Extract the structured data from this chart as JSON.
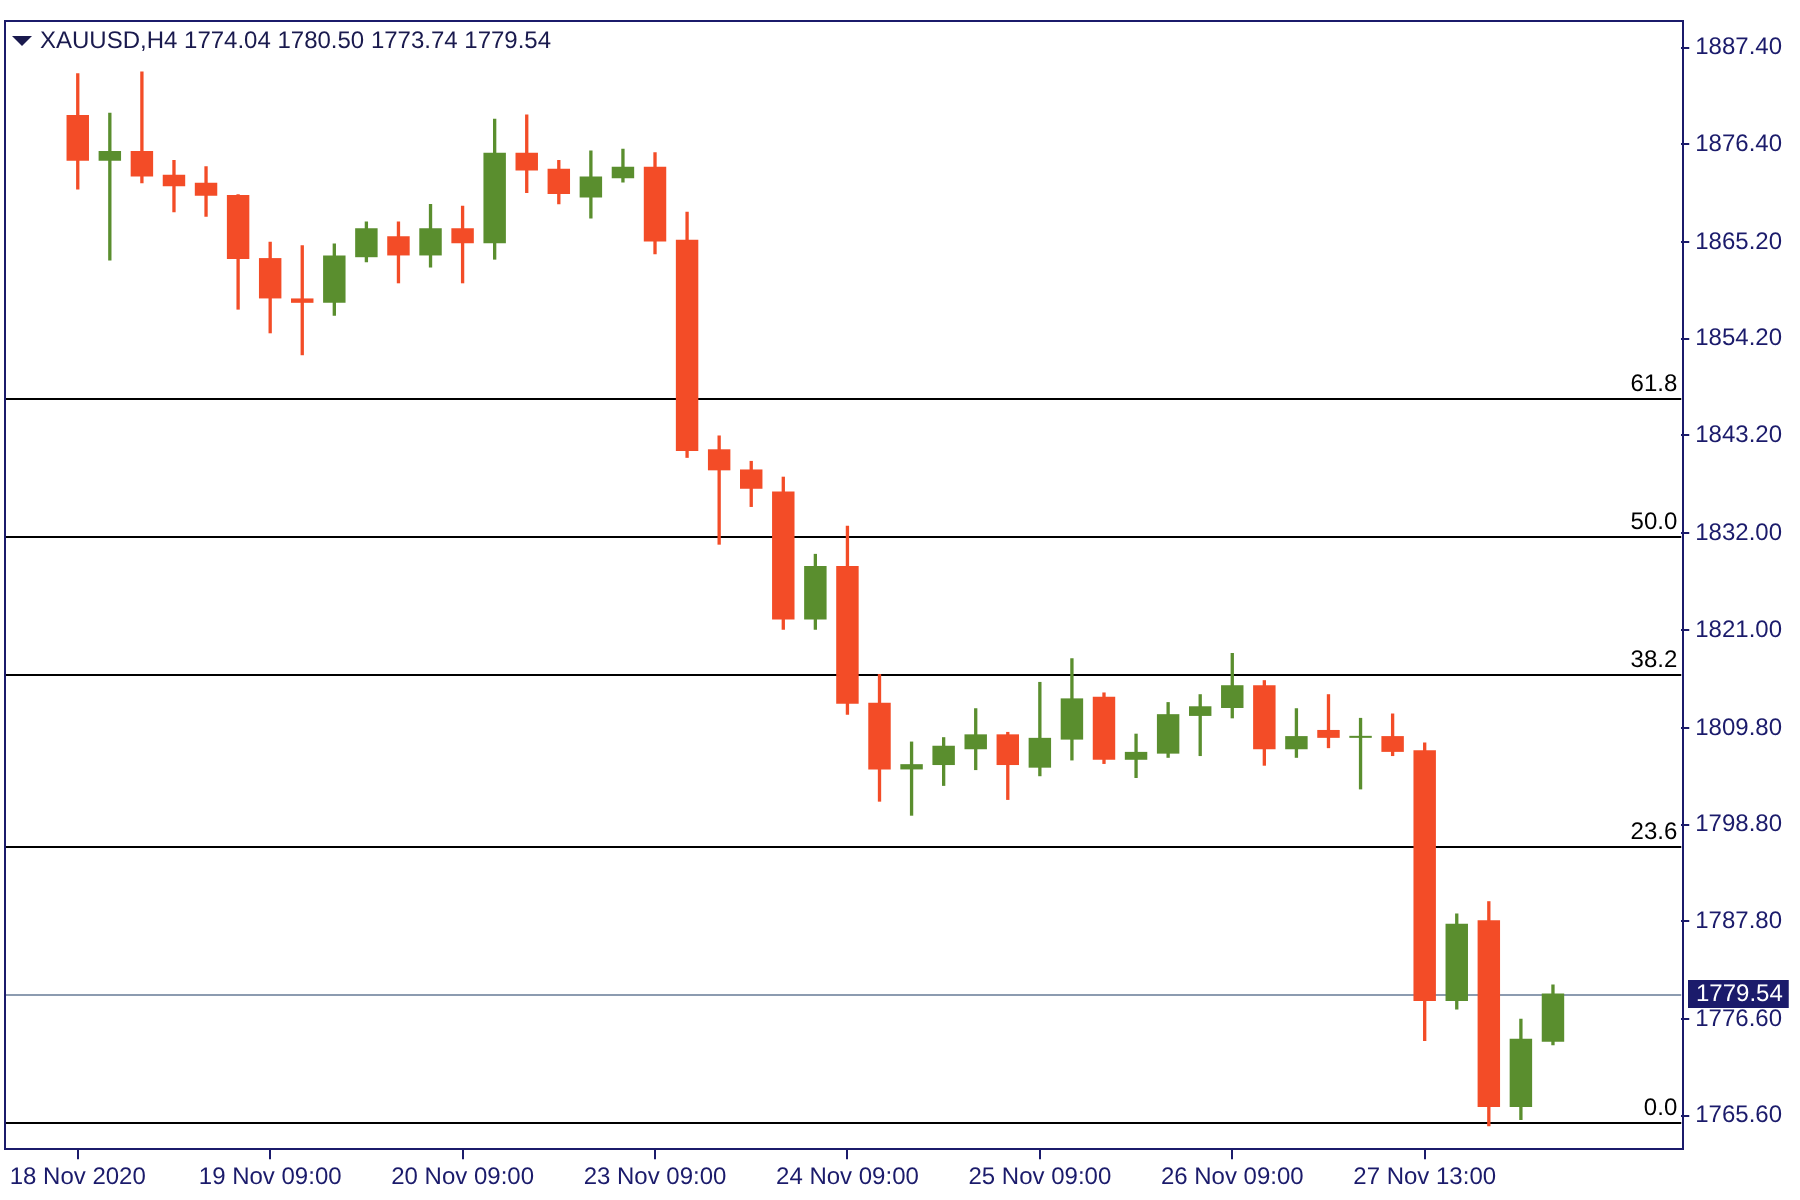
{
  "chart_data": {
    "type": "candlestick",
    "title": "XAUUSD,H4 1774.04 1780.50 1773.74 1779.54",
    "categories": [
      "18 Nov 2020",
      null,
      null,
      null,
      null,
      null,
      "19 Nov 09:00",
      null,
      null,
      null,
      null,
      null,
      "20 Nov 09:00",
      null,
      null,
      null,
      null,
      null,
      "23 Nov 09:00",
      null,
      null,
      null,
      null,
      null,
      "24 Nov 09:00",
      null,
      null,
      null,
      null,
      null,
      "25 Nov 09:00",
      null,
      null,
      null,
      null,
      null,
      "26 Nov 09:00",
      null,
      null,
      null,
      null,
      null,
      "27 Nov 13:00",
      null,
      null,
      null,
      null
    ],
    "ohlc": [
      [
        1879.7,
        1884.4,
        1871.3,
        1874.5
      ],
      [
        1874.5,
        1879.9,
        1863.2,
        1875.6
      ],
      [
        1875.6,
        1884.6,
        1872.0,
        1872.7
      ],
      [
        1872.9,
        1874.5,
        1868.7,
        1871.6
      ],
      [
        1872.0,
        1873.8,
        1868.2,
        1870.5
      ],
      [
        1870.6,
        1870.6,
        1857.6,
        1863.3
      ],
      [
        1863.4,
        1865.2,
        1854.9,
        1858.8
      ],
      [
        1858.8,
        1864.8,
        1852.4,
        1858.3
      ],
      [
        1858.3,
        1865.0,
        1856.9,
        1863.7
      ],
      [
        1863.5,
        1867.5,
        1863.0,
        1866.8
      ],
      [
        1865.9,
        1867.5,
        1860.6,
        1863.7
      ],
      [
        1863.7,
        1869.5,
        1862.4,
        1866.8
      ],
      [
        1866.8,
        1869.3,
        1860.6,
        1865.1
      ],
      [
        1865.1,
        1879.2,
        1863.3,
        1875.4
      ],
      [
        1875.4,
        1879.7,
        1870.9,
        1873.4
      ],
      [
        1873.6,
        1874.5,
        1869.6,
        1870.7
      ],
      [
        1870.3,
        1875.6,
        1868.0,
        1872.7
      ],
      [
        1872.5,
        1875.8,
        1872.1,
        1873.8
      ],
      [
        1873.8,
        1875.4,
        1863.9,
        1865.3
      ],
      [
        1865.5,
        1868.6,
        1840.7,
        1841.4
      ],
      [
        1841.6,
        1843.1,
        1830.8,
        1839.2
      ],
      [
        1839.3,
        1840.2,
        1835.1,
        1837.1
      ],
      [
        1836.8,
        1838.4,
        1821.1,
        1822.2
      ],
      [
        1822.2,
        1829.6,
        1821.1,
        1828.3
      ],
      [
        1828.3,
        1832.8,
        1811.4,
        1812.6
      ],
      [
        1812.7,
        1815.9,
        1801.5,
        1805.1
      ],
      [
        1805.1,
        1808.2,
        1799.9,
        1805.7
      ],
      [
        1805.6,
        1808.7,
        1803.3,
        1807.8
      ],
      [
        1807.4,
        1812.0,
        1805.1,
        1809.1
      ],
      [
        1809.1,
        1809.3,
        1801.7,
        1805.6
      ],
      [
        1805.3,
        1815.0,
        1804.4,
        1808.7
      ],
      [
        1808.5,
        1817.7,
        1806.2,
        1813.2
      ],
      [
        1813.4,
        1813.8,
        1805.8,
        1806.2
      ],
      [
        1806.2,
        1809.1,
        1804.2,
        1807.1
      ],
      [
        1806.9,
        1812.7,
        1806.5,
        1811.4
      ],
      [
        1811.2,
        1813.6,
        1806.7,
        1812.3
      ],
      [
        1812.1,
        1818.3,
        1811.0,
        1814.7
      ],
      [
        1814.7,
        1815.2,
        1805.6,
        1807.4
      ],
      [
        1807.4,
        1812.0,
        1806.5,
        1808.9
      ],
      [
        1809.6,
        1813.6,
        1807.6,
        1808.7
      ],
      [
        1808.7,
        1810.9,
        1802.9,
        1808.9
      ],
      [
        1808.9,
        1811.4,
        1806.7,
        1807.1
      ],
      [
        1807.3,
        1808.1,
        1774.2,
        1778.7
      ],
      [
        1778.7,
        1788.6,
        1777.8,
        1787.5
      ],
      [
        1787.9,
        1790.0,
        1764.5,
        1766.6
      ],
      [
        1766.6,
        1776.6,
        1765.2,
        1774.4
      ],
      [
        1774.04,
        1780.5,
        1773.74,
        1779.54
      ]
    ],
    "colors": [
      "#f34c27",
      "#5a8e2e",
      "#f34c27",
      "#f34c27",
      "#f34c27",
      "#f34c27",
      "#f34c27",
      "#f34c27",
      "#5a8e2e",
      "#5a8e2e",
      "#f34c27",
      "#5a8e2e",
      "#f34c27",
      "#5a8e2e",
      "#f34c27",
      "#f34c27",
      "#5a8e2e",
      "#5a8e2e",
      "#f34c27",
      "#f34c27",
      "#f34c27",
      "#f34c27",
      "#f34c27",
      "#5a8e2e",
      "#f34c27",
      "#f34c27",
      "#5a8e2e",
      "#5a8e2e",
      "#5a8e2e",
      "#f34c27",
      "#5a8e2e",
      "#5a8e2e",
      "#f34c27",
      "#5a8e2e",
      "#5a8e2e",
      "#5a8e2e",
      "#5a8e2e",
      "#f34c27",
      "#5a8e2e",
      "#f34c27",
      "#5a8e2e",
      "#f34c27",
      "#f34c27",
      "#5a8e2e",
      "#f34c27",
      "#5a8e2e",
      "#5a8e2e"
    ],
    "ylim": [
      1761.8,
      1890.5
    ],
    "yticks": [
      {
        "value": 1887.4,
        "label": "1887.40"
      },
      {
        "value": 1876.4,
        "label": "1876.40"
      },
      {
        "value": 1865.2,
        "label": "1865.20"
      },
      {
        "value": 1854.2,
        "label": "1854.20"
      },
      {
        "value": 1843.2,
        "label": "1843.20"
      },
      {
        "value": 1832,
        "label": "1832.00"
      },
      {
        "value": 1821,
        "label": "1821.00"
      },
      {
        "value": 1809.8,
        "label": "1809.80"
      },
      {
        "value": 1798.8,
        "label": "1798.80"
      },
      {
        "value": 1787.8,
        "label": "1787.80"
      },
      {
        "value": 1776.6,
        "label": "1776.60"
      },
      {
        "value": 1765.6,
        "label": "1765.60"
      }
    ],
    "ref_lines": [
      {
        "axis": "y",
        "value": 1847.4,
        "color": "#000000"
      },
      {
        "axis": "y",
        "value": 1831.6,
        "color": "#000000"
      },
      {
        "axis": "y",
        "value": 1815.9,
        "color": "#000000"
      },
      {
        "axis": "y",
        "value": 1796.4,
        "color": "#000000"
      },
      {
        "axis": "y",
        "value": 1764.9,
        "color": "#000000"
      },
      {
        "axis": "y",
        "value": 1779.54,
        "label": "1779.54",
        "color": "#8c9bb0"
      }
    ],
    "annotations": [
      {
        "text": "61.8",
        "y": 1847.4
      },
      {
        "text": "50.0",
        "y": 1831.6
      },
      {
        "text": "38.2",
        "y": 1815.9
      },
      {
        "text": "23.6",
        "y": 1796.4
      },
      {
        "text": "0.0",
        "y": 1764.9
      }
    ]
  }
}
